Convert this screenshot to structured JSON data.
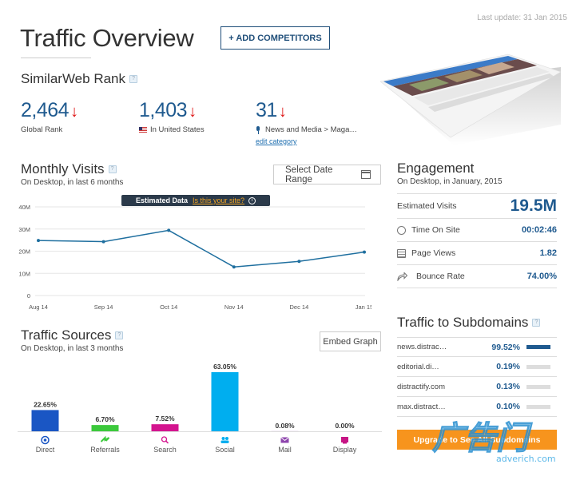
{
  "last_update": "Last update: 31 Jan 2015",
  "page_title": "Traffic Overview",
  "add_competitors": "+ ADD COMPETITORS",
  "rank": {
    "title": "SimilarWeb Rank",
    "global": {
      "value": "2,464",
      "label": "Global Rank"
    },
    "country": {
      "value": "1,403",
      "label": "In United States"
    },
    "category": {
      "value": "31",
      "label": "News and Media > Maga…",
      "edit": "edit category"
    }
  },
  "monthly_visits": {
    "title": "Monthly Visits",
    "subtitle": "On Desktop, in last 6 months",
    "date_button": "Select Date Range",
    "estimated": "Estimated Data",
    "estimated_link": "Is this your site?"
  },
  "chart_data": [
    {
      "type": "line",
      "categories": [
        "Aug 14",
        "Sep 14",
        "Oct 14",
        "Nov 14",
        "Dec 14",
        "Jan 15"
      ],
      "values": [
        24.8,
        24.3,
        29.4,
        12.9,
        15.4,
        19.6
      ],
      "y_ticks": [
        "0",
        "10M",
        "20M",
        "30M",
        "40M"
      ],
      "ylim": [
        0,
        40
      ],
      "color": "#1f6f9f"
    },
    {
      "type": "bar",
      "categories": [
        "Direct",
        "Referrals",
        "Search",
        "Social",
        "Mail",
        "Display"
      ],
      "values": [
        22.65,
        6.7,
        7.52,
        63.05,
        0.08,
        0.0
      ],
      "labels": [
        "22.65%",
        "6.70%",
        "7.52%",
        "63.05%",
        "0.08%",
        "0.00%"
      ],
      "colors": [
        "#1a56c4",
        "#3cc93c",
        "#d4158f",
        "#00aeef",
        "#8e44ad",
        "#c71585"
      ],
      "icons": [
        "target-icon",
        "referral-arrows-icon",
        "search-icon",
        "people-icon",
        "mail-icon",
        "display-icon"
      ]
    }
  ],
  "traffic_sources": {
    "title": "Traffic Sources",
    "subtitle": "On Desktop, in last 3 months",
    "embed_button": "Embed Graph"
  },
  "engagement": {
    "title": "Engagement",
    "subtitle": "On Desktop, in January, 2015",
    "estimated_visits_label": "Estimated Visits",
    "estimated_visits_value": "19.5M",
    "time_on_site_label": "Time On Site",
    "time_on_site_value": "00:02:46",
    "page_views_label": "Page Views",
    "page_views_value": "1.82",
    "bounce_rate_label": "Bounce Rate",
    "bounce_rate_value": "74.00%"
  },
  "subdomains": {
    "title": "Traffic to Subdomains",
    "rows": [
      {
        "name": "news.distrac…",
        "pct": "99.52%",
        "share": 0.9952
      },
      {
        "name": "editorial.di…",
        "pct": "0.19%",
        "share": 0.0019
      },
      {
        "name": "distractify.com",
        "pct": "0.13%",
        "share": 0.0013
      },
      {
        "name": "max.distract…",
        "pct": "0.10%",
        "share": 0.001
      }
    ],
    "upgrade": "Upgrade to See All Subdomains"
  },
  "watermark": {
    "mark": "广告门",
    "url": "adverich.com"
  }
}
